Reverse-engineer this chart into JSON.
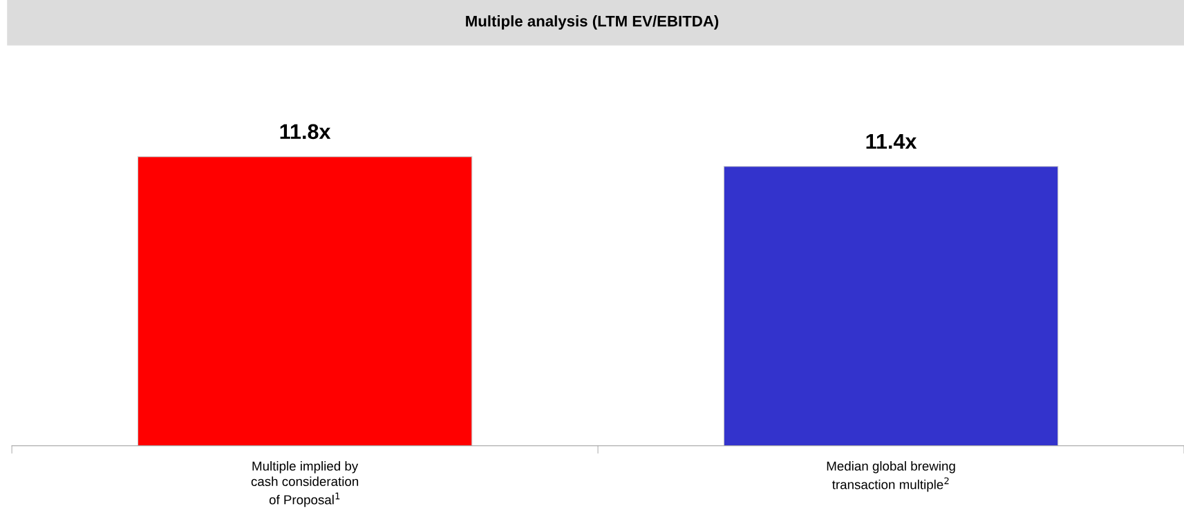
{
  "chart_data": {
    "type": "bar",
    "title": "Multiple analysis (LTM EV/EBITDA)",
    "categories": [
      "Multiple implied by\ncash consideration\nof Proposal$^{1}$",
      "Median global brewing\ntransaction multiple$^{2}$"
    ],
    "values": [
      11.8,
      11.4
    ],
    "colors": [
      "#ff0000",
      "#3333cc"
    ],
    "value_labels": [
      "11.8x",
      "11.4x"
    ],
    "grid": false,
    "legend": false
  }
}
